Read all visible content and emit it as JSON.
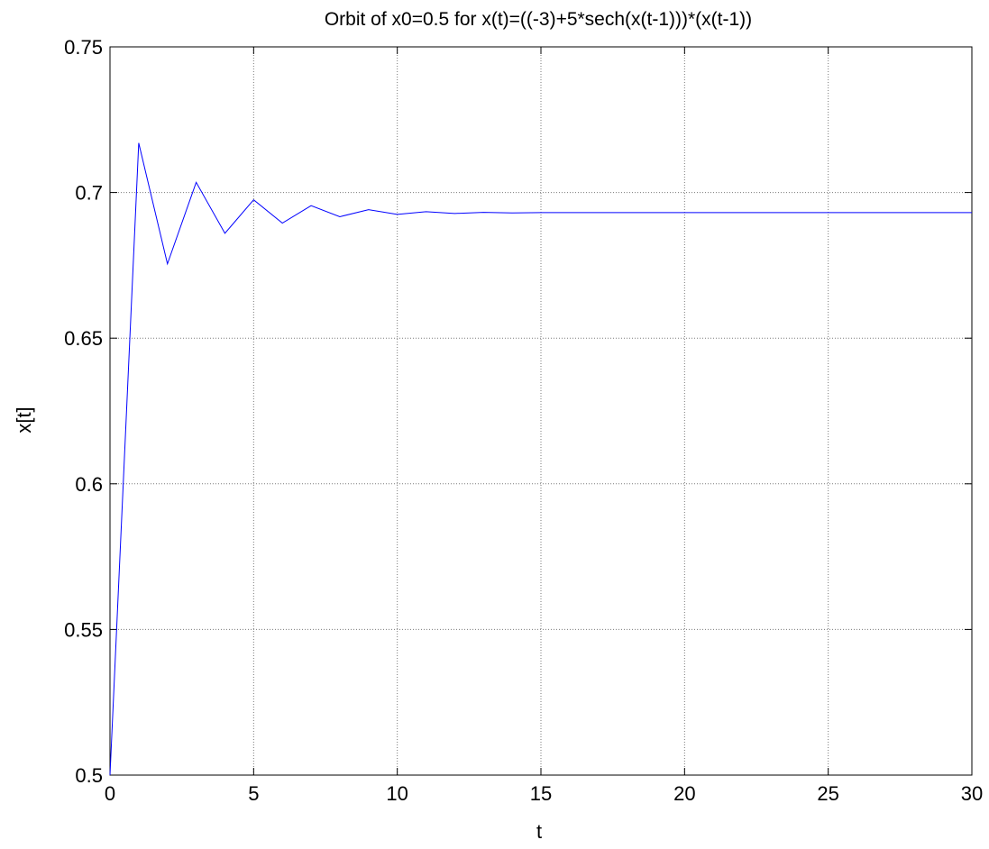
{
  "chart_data": {
    "type": "line",
    "title": "Orbit of x0=0.5 for x(t)=((-3)+5*sech(x(t-1)))*(x(t-1))",
    "xlabel": "t",
    "ylabel": "x[t]",
    "xlim": [
      0,
      30
    ],
    "ylim": [
      0.5,
      0.75
    ],
    "xticks": [
      0,
      5,
      10,
      15,
      20,
      25,
      30
    ],
    "xtick_labels": [
      "0",
      "5",
      "10",
      "15",
      "20",
      "25",
      "30"
    ],
    "yticks": [
      0.5,
      0.55,
      0.6,
      0.65,
      0.7,
      0.75
    ],
    "ytick_labels": [
      "0.5",
      "0.55",
      "0.6",
      "0.65",
      "0.7",
      "0.75"
    ],
    "grid": true,
    "line_color": "#0000ff",
    "series": [
      {
        "x": [
          0,
          1,
          2,
          3,
          4,
          5,
          6,
          7,
          8,
          9,
          10,
          11,
          12,
          13,
          14,
          15,
          16,
          17,
          18,
          19,
          20,
          21,
          22,
          23,
          24,
          25,
          26,
          27,
          28,
          29,
          30
        ],
        "values": [
          0.5,
          0.717,
          0.6755,
          0.7035,
          0.686,
          0.6975,
          0.6895,
          0.6955,
          0.6917,
          0.6941,
          0.6925,
          0.6934,
          0.6928,
          0.6932,
          0.693,
          0.6931,
          0.6931,
          0.6931,
          0.6931,
          0.6931,
          0.6931,
          0.6931,
          0.6931,
          0.6931,
          0.6931,
          0.6931,
          0.6931,
          0.6931,
          0.6931,
          0.6931,
          0.6931
        ]
      }
    ]
  }
}
